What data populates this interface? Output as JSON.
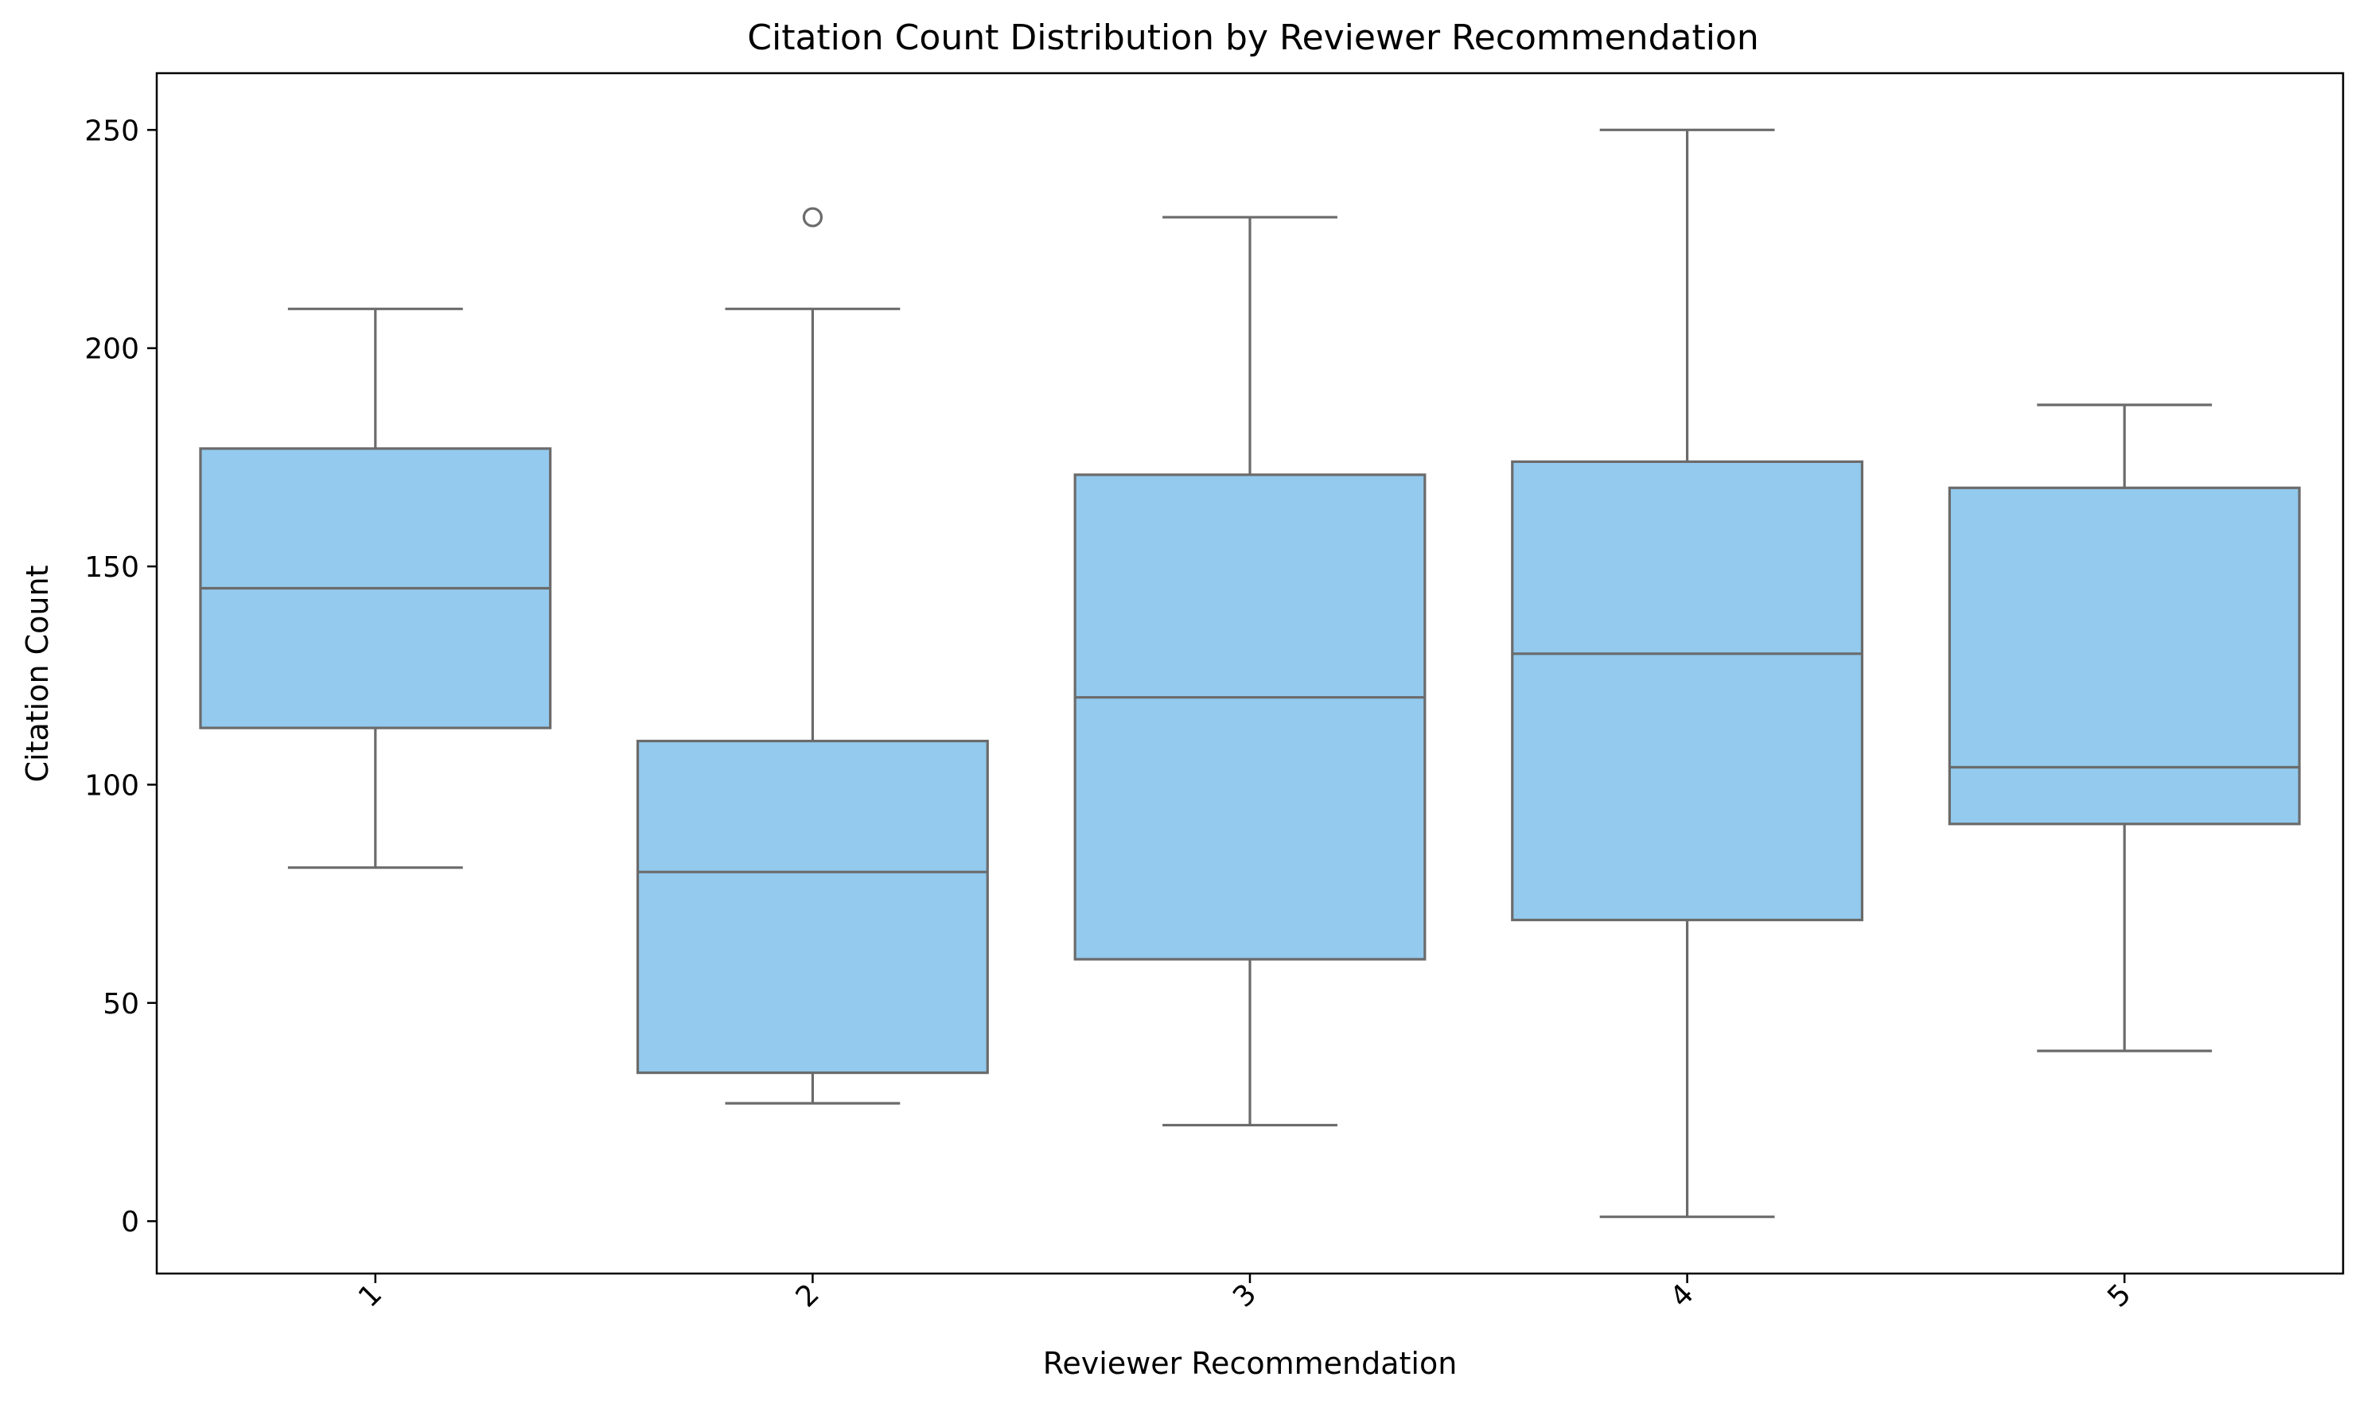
{
  "chart_data": {
    "type": "box",
    "title": "Citation Count Distribution by Reviewer Recommendation",
    "xlabel": "Reviewer Recommendation",
    "ylabel": "Citation Count",
    "ylim": [
      -12,
      263
    ],
    "yticks": [
      0,
      50,
      100,
      150,
      200,
      250
    ],
    "grid": false,
    "legend": false,
    "colors": {
      "box_fill": "#93caee",
      "line": "#6b6b6b",
      "axis": "#000000",
      "background": "#ffffff"
    },
    "categories": [
      "1",
      "2",
      "3",
      "4",
      "5"
    ],
    "boxes": [
      {
        "category": "1",
        "whisker_low": 81,
        "q1": 113,
        "median": 145,
        "q3": 177,
        "whisker_high": 209,
        "outliers": []
      },
      {
        "category": "2",
        "whisker_low": 27,
        "q1": 34,
        "median": 80,
        "q3": 110,
        "whisker_high": 209,
        "outliers": [
          230
        ]
      },
      {
        "category": "3",
        "whisker_low": 22,
        "q1": 60,
        "median": 120,
        "q3": 171,
        "whisker_high": 230,
        "outliers": []
      },
      {
        "category": "4",
        "whisker_low": 1,
        "q1": 69,
        "median": 130,
        "q3": 174,
        "whisker_high": 250,
        "outliers": []
      },
      {
        "category": "5",
        "whisker_low": 39,
        "q1": 91,
        "median": 104,
        "q3": 168,
        "whisker_high": 187,
        "outliers": []
      }
    ]
  }
}
